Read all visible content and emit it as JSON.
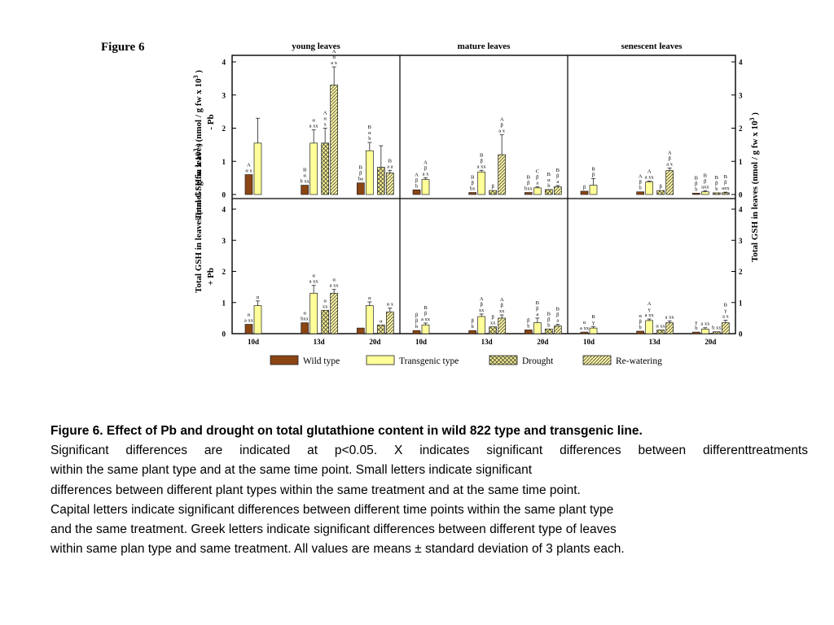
{
  "figure_label": "Figure 6",
  "caption": {
    "title": "Figure 6. Effect of Pb and drought on total glutathione content in wild 822 type and transgenic line.",
    "lines": [
      " Significant differences are indicated at p<0.05. X indicates significant differences between differenttreatments",
      "within the same plant type and at the same time point. Small letters indicate significant",
      "differences between different plant types within the same treatment and at the same time point.",
      "Capital letters indicate significant differences between different time points within the same plant type",
      " and the same treatment. Greek letters indicate significant differences between different type of leaves",
      " within same plan type and same treatment. All values are means ± standard deviation of 3 plants each."
    ]
  },
  "chart_data": {
    "type": "bar",
    "panel_titles": [
      "young leaves",
      "mature leaves",
      "senescent leaves"
    ],
    "row_labels": [
      "- Pb",
      "+ Pb"
    ],
    "y_axis_title": "Total GSH in leaves   (nmol / g fw  x 10",
    "y_axis_title_sup": "3",
    "y_axis_title_end": " )",
    "ylim": [
      0,
      4
    ],
    "y_ticks": [
      "0",
      "1",
      "2",
      "3",
      "4"
    ],
    "time_points": [
      "10d",
      "13d",
      "20d"
    ],
    "legend": [
      {
        "name": "Wild type",
        "pattern": "wild"
      },
      {
        "name": "Transgenic type",
        "pattern": "transgenic"
      },
      {
        "name": "Drought",
        "pattern": "drought"
      },
      {
        "name": "Re-watering",
        "pattern": "rewater"
      }
    ],
    "colors": {
      "wild": "#8b4513",
      "transgenic": "#ffff99",
      "drought": "#f2ec8c",
      "rewater": "#f5f0a0"
    },
    "series_order": [
      "wild_control",
      "transgenic_control",
      "wild_treated",
      "transgenic_treated"
    ],
    "panels": [
      {
        "row": 0,
        "col": 0,
        "groups": [
          {
            "bars": [
              {
                "v": 0.6,
                "e": 0,
                "l": "A\nα x"
              },
              {
                "v": 1.55,
                "e": 0.75,
                "l": ""
              }
            ]
          },
          {
            "bars": [
              {
                "v": 0.28,
                "e": 0,
                "l": "B\nα\nb xx"
              },
              {
                "v": 1.55,
                "e": 0.4,
                "l": "α\na xx"
              },
              {
                "v": 1.55,
                "e": 0.45,
                "l": "A\nα\nx"
              },
              {
                "v": 3.3,
                "e": 0.55,
                "l": "A\nα\na x"
              }
            ]
          },
          {
            "bars": [
              {
                "v": 0.35,
                "e": 0,
                "l": "B\nβ\nba"
              },
              {
                "v": 1.32,
                "e": 0.25,
                "l": "B\nα\nb"
              },
              {
                "v": 0.82,
                "e": 0.65,
                "l": ""
              },
              {
                "v": 0.65,
                "e": 0.08,
                "l": "B\na a"
              }
            ]
          }
        ]
      },
      {
        "row": 0,
        "col": 1,
        "groups": [
          {
            "bars": [
              {
                "v": 0.14,
                "e": 0,
                "l": "A\nβ\nb"
              },
              {
                "v": 0.45,
                "e": 0.05,
                "l": "A\nβ\na x"
              }
            ]
          },
          {
            "bars": [
              {
                "v": 0.06,
                "e": 0,
                "l": "B\nβ\nbx"
              },
              {
                "v": 0.68,
                "e": 0.05,
                "l": "B\nβ\na xx"
              },
              {
                "v": 0.12,
                "e": 0,
                "l": "β"
              },
              {
                "v": 1.2,
                "e": 0.6,
                "l": "A\nβ\na x"
              }
            ]
          },
          {
            "bars": [
              {
                "v": 0.06,
                "e": 0,
                "l": "B\nβ\nbxx"
              },
              {
                "v": 0.2,
                "e": 0.03,
                "l": "C\nβ\na"
              },
              {
                "v": 0.15,
                "e": 0,
                "l": "B\nα\nb"
              },
              {
                "v": 0.23,
                "e": 0.04,
                "l": "B\nβ\na"
              }
            ]
          }
        ]
      },
      {
        "row": 0,
        "col": 2,
        "groups": [
          {
            "bars": [
              {
                "v": 0.1,
                "e": 0,
                "l": "β"
              },
              {
                "v": 0.28,
                "e": 0.2,
                "l": "B\nβ"
              }
            ]
          },
          {
            "bars": [
              {
                "v": 0.08,
                "e": 0,
                "l": "A\nβ\nb"
              },
              {
                "v": 0.38,
                "e": 0.03,
                "l": "A\na xx"
              },
              {
                "v": 0.12,
                "e": 0,
                "l": "β"
              },
              {
                "v": 0.72,
                "e": 0.08,
                "l": "A\nβ\na x"
              }
            ]
          },
          {
            "bars": [
              {
                "v": 0.04,
                "e": 0,
                "l": "B\nβ\nb"
              },
              {
                "v": 0.08,
                "e": 0.03,
                "l": "B\nβ\naxx"
              },
              {
                "v": 0.05,
                "e": 0,
                "l": "B\nβ\nb"
              },
              {
                "v": 0.05,
                "e": 0.02,
                "l": "B\nβ\naxx"
              }
            ]
          }
        ]
      },
      {
        "row": 1,
        "col": 0,
        "groups": [
          {
            "bars": [
              {
                "v": 0.3,
                "e": 0,
                "l": "α\na xx"
              },
              {
                "v": 0.9,
                "e": 0.15,
                "l": "α"
              }
            ]
          },
          {
            "bars": [
              {
                "v": 0.35,
                "e": 0,
                "l": "α\nbxx"
              },
              {
                "v": 1.3,
                "e": 0.25,
                "l": "α\na xx"
              },
              {
                "v": 0.75,
                "e": 0,
                "l": "α\nxx"
              },
              {
                "v": 1.3,
                "e": 0.12,
                "l": "α\na xx"
              }
            ]
          },
          {
            "bars": [
              {
                "v": 0.18,
                "e": 0,
                "l": ""
              },
              {
                "v": 0.9,
                "e": 0.12,
                "l": "α"
              },
              {
                "v": 0.28,
                "e": 0,
                "l": "α"
              },
              {
                "v": 0.7,
                "e": 0.12,
                "l": "α x"
              }
            ]
          }
        ]
      },
      {
        "row": 1,
        "col": 1,
        "groups": [
          {
            "bars": [
              {
                "v": 0.1,
                "e": 0,
                "l": "β\nβ\nb"
              },
              {
                "v": 0.28,
                "e": 0.06,
                "l": "B\nβ\na xx"
              }
            ]
          },
          {
            "bars": [
              {
                "v": 0.1,
                "e": 0,
                "l": "β\nb"
              },
              {
                "v": 0.55,
                "e": 0.08,
                "l": "A\nβ\nxx"
              },
              {
                "v": 0.22,
                "e": 0,
                "l": "β\nxx"
              },
              {
                "v": 0.5,
                "e": 0.1,
                "l": "A\nβ\nxx"
              }
            ]
          },
          {
            "bars": [
              {
                "v": 0.12,
                "e": 0,
                "l": "β\nb"
              },
              {
                "v": 0.35,
                "e": 0.15,
                "l": "B\nβ\na"
              },
              {
                "v": 0.15,
                "e": 0,
                "l": "B\nβ\nb"
              },
              {
                "v": 0.25,
                "e": 0.05,
                "l": "B\nβ\na"
              }
            ]
          }
        ]
      },
      {
        "row": 1,
        "col": 2,
        "groups": [
          {
            "bars": [
              {
                "v": 0.05,
                "e": 0,
                "l": "α\na xx"
              },
              {
                "v": 0.18,
                "e": 0.05,
                "l": "B\nγ"
              }
            ]
          },
          {
            "bars": [
              {
                "v": 0.08,
                "e": 0,
                "l": "α\nβ\nb"
              },
              {
                "v": 0.42,
                "e": 0.05,
                "l": "A\nγ\na xx"
              },
              {
                "v": 0.12,
                "e": 0,
                "l": "α xx"
              },
              {
                "v": 0.35,
                "e": 0.06,
                "l": "a xx"
              }
            ]
          },
          {
            "bars": [
              {
                "v": 0.05,
                "e": 0,
                "l": "γ\nb"
              },
              {
                "v": 0.15,
                "e": 0.04,
                "l": "a xx"
              },
              {
                "v": 0.06,
                "e": 0,
                "l": "b xx"
              },
              {
                "v": 0.35,
                "e": 0.08,
                "l": "B\nγ\na x"
              }
            ]
          }
        ]
      }
    ]
  }
}
